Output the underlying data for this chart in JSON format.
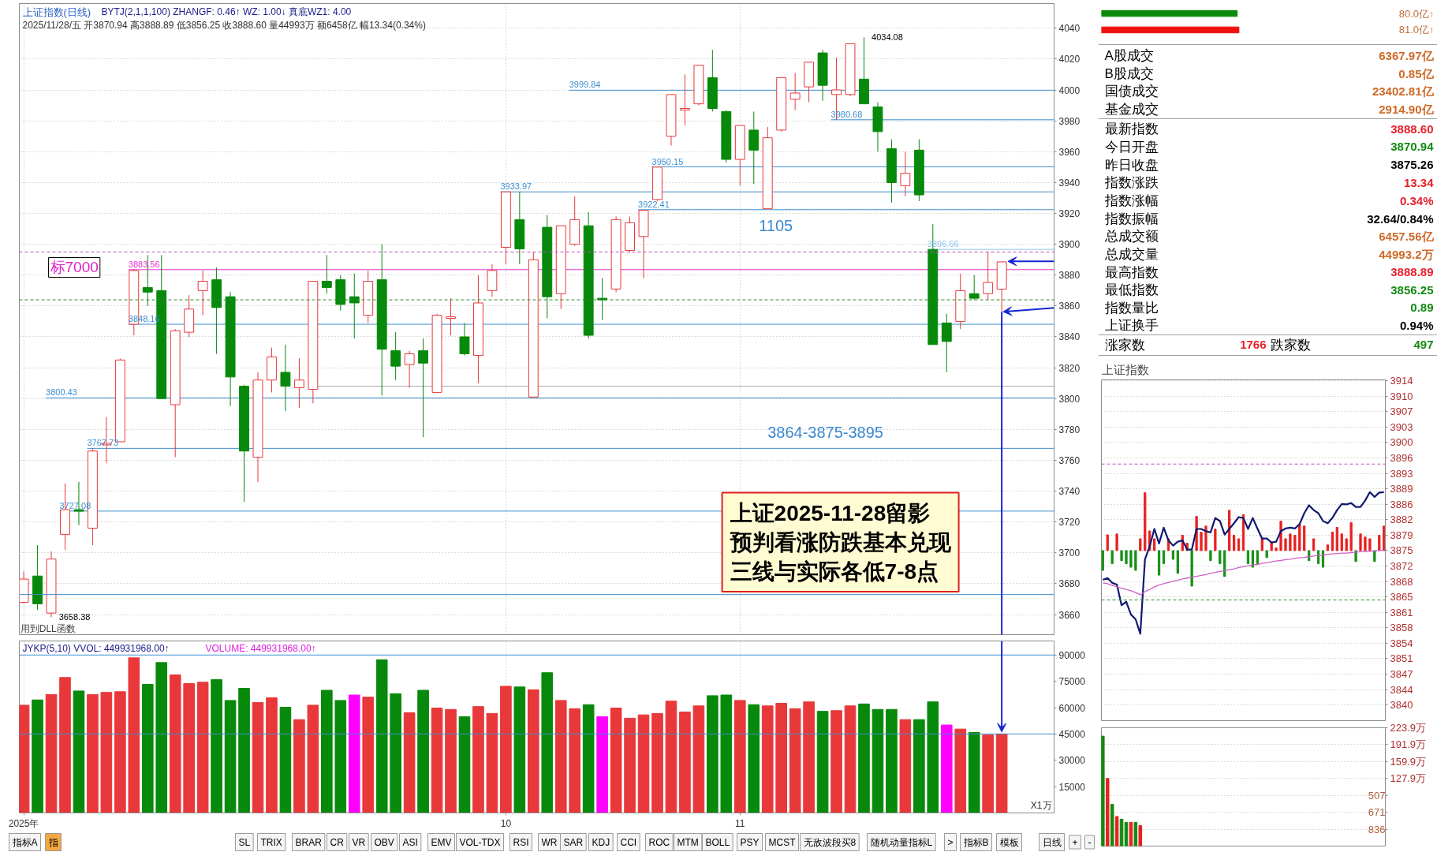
{
  "chart_data": [
    {
      "type": "candlestick",
      "title": "上证指数(日线)",
      "subtitle": "2025/11/28/五 开3870.94 高3888.89 低3856.25 收3888.60 量44993万 额6458亿 幅13.34(0.34%)",
      "categories": [
        null,
        null,
        null,
        null,
        null,
        null,
        null,
        null,
        null,
        null,
        null,
        null,
        null,
        null,
        null,
        null,
        null,
        null,
        null,
        null,
        null,
        null,
        null,
        null,
        null,
        null,
        null,
        null,
        null,
        null,
        null,
        null,
        null,
        null,
        null,
        null,
        null,
        null,
        null,
        null,
        null,
        null,
        null,
        null,
        null,
        null,
        null,
        null,
        null,
        null,
        null,
        null,
        null,
        null,
        null,
        null,
        null,
        null,
        null,
        null,
        null,
        null,
        null,
        null,
        null,
        null,
        null,
        null,
        null,
        null,
        null,
        null
      ],
      "ohlc": [
        [
          3668,
          3688,
          3667,
          3683
        ],
        [
          3685,
          3705,
          3663,
          3667
        ],
        [
          3661,
          3701,
          3658.38,
          3696
        ],
        [
          3712,
          3745,
          3702,
          3728
        ],
        [
          3728,
          3746,
          3718,
          3727
        ],
        [
          3716,
          3767.73,
          3705,
          3766
        ],
        [
          3770,
          3788,
          3758,
          3771
        ],
        [
          3772,
          3826,
          3772,
          3825
        ],
        [
          3848.16,
          3883.56,
          3841,
          3883
        ],
        [
          3872,
          3893,
          3860,
          3869
        ],
        [
          3870,
          3893,
          3800,
          3800
        ],
        [
          3796,
          3845,
          3762,
          3844
        ],
        [
          3843,
          3867,
          3840,
          3858
        ],
        [
          3870,
          3883,
          3854,
          3876
        ],
        [
          3877,
          3885,
          3829,
          3859
        ],
        [
          3866,
          3869,
          3795,
          3814
        ],
        [
          3808,
          3809,
          3733,
          3766
        ],
        [
          3762,
          3817,
          3746,
          3812
        ],
        [
          3812,
          3833,
          3804,
          3827
        ],
        [
          3817,
          3835,
          3792,
          3808
        ],
        [
          3807,
          3826,
          3794,
          3812
        ],
        [
          3806,
          3876,
          3797,
          3876
        ],
        [
          3876,
          3893,
          3868,
          3872
        ],
        [
          3877,
          3880,
          3857,
          3861
        ],
        [
          3866,
          3881,
          3839,
          3862
        ],
        [
          3854,
          3883,
          3849,
          3876
        ],
        [
          3877,
          3900,
          3802,
          3832
        ],
        [
          3831,
          3843,
          3812,
          3821
        ],
        [
          3822,
          3831,
          3807,
          3829
        ],
        [
          3831,
          3839,
          3775,
          3823
        ],
        [
          3804,
          3855,
          3804,
          3854
        ],
        [
          3852,
          3865,
          3841,
          3853
        ],
        [
          3840,
          3849,
          3828,
          3829
        ],
        [
          3828,
          3880,
          3810,
          3862
        ],
        [
          3870,
          3887,
          3866,
          3883
        ],
        [
          3898,
          3934,
          3887,
          3933.97
        ],
        [
          3916,
          3934,
          3887,
          3897
        ],
        [
          3801,
          3895,
          3801,
          3890
        ],
        [
          3911,
          3919,
          3852,
          3866
        ],
        [
          3868,
          3912,
          3858,
          3912
        ],
        [
          3900,
          3931,
          3899,
          3916
        ],
        [
          3912,
          3921,
          3839,
          3841
        ],
        [
          3865,
          3878,
          3851,
          3864
        ],
        [
          3871,
          3918,
          3869,
          3916
        ],
        [
          3896,
          3918,
          3895,
          3914
        ],
        [
          3905,
          3922.41,
          3878,
          3922
        ],
        [
          3929,
          3950.15,
          3928,
          3950
        ],
        [
          3970,
          3997,
          3964,
          3997
        ],
        [
          3987,
          4010,
          3977,
          3988
        ],
        [
          3991,
          4016,
          3990,
          4016
        ],
        [
          4008,
          4026,
          3986,
          3988
        ],
        [
          3986,
          3987,
          3953,
          3955
        ],
        [
          3955,
          3977,
          3938,
          3977
        ],
        [
          3974,
          3986,
          3939,
          3961
        ],
        [
          3923,
          3976,
          3923,
          3969
        ],
        [
          3974,
          4008,
          3973,
          4008
        ],
        [
          3994,
          4011,
          3987,
          3998
        ],
        [
          4002,
          4018,
          3992,
          4018
        ],
        [
          4024,
          4026,
          3993,
          4003
        ],
        [
          3997,
          4021,
          3980.68,
          4000
        ],
        [
          3997,
          4030,
          3996,
          4030
        ],
        [
          4007,
          4034.08,
          3991,
          3991
        ],
        [
          3989,
          3992,
          3960,
          3973
        ],
        [
          3962,
          3968,
          3927,
          3940
        ],
        [
          3938,
          3960,
          3931,
          3946
        ],
        [
          3961,
          3968,
          3928,
          3932
        ],
        [
          3896.66,
          3913,
          3835,
          3835
        ],
        [
          3849,
          3855,
          3817,
          3837
        ],
        [
          3850,
          3881,
          3845,
          3870
        ],
        [
          3868,
          3880,
          3864,
          3865
        ],
        [
          3868,
          3895,
          3864,
          3875.26
        ],
        [
          3870.94,
          3888.89,
          3856.25,
          3888.6
        ]
      ],
      "colors": [
        "#e8383a",
        "#07890b",
        "#e8383a",
        "#e8383a",
        "#07890b",
        "#e8383a",
        "#e8383a",
        "#e8383a",
        "#e8383a",
        "#07890b",
        "#07890b",
        "#e8383a",
        "#e8383a",
        "#e8383a",
        "#07890b",
        "#07890b",
        "#07890b",
        "#e8383a",
        "#e8383a",
        "#07890b",
        "#e8383a",
        "#e8383a",
        "#07890b",
        "#07890b",
        "#07890b",
        "#e8383a",
        "#07890b",
        "#07890b",
        "#e8383a",
        "#07890b",
        "#e8383a",
        "#e8383a",
        "#07890b",
        "#e8383a",
        "#e8383a",
        "#e8383a",
        "#07890b",
        "#e8383a",
        "#07890b",
        "#e8383a",
        "#e8383a",
        "#07890b",
        "#07890b",
        "#e8383a",
        "#e8383a",
        "#e8383a",
        "#e8383a",
        "#e8383a",
        "#e8383a",
        "#e8383a",
        "#07890b",
        "#07890b",
        "#e8383a",
        "#07890b",
        "#e8383a",
        "#e8383a",
        "#e8383a",
        "#e8383a",
        "#07890b",
        "#e8383a",
        "#e8383a",
        "#07890b",
        "#07890b",
        "#07890b",
        "#e8383a",
        "#07890b",
        "#07890b",
        "#07890b",
        "#e8383a",
        "#07890b",
        "#e8383a",
        "#e8383a"
      ],
      "ylim": [
        3647,
        4056
      ],
      "yticks": [
        3660,
        3680,
        3700,
        3720,
        3740,
        3760,
        3780,
        3800,
        3820,
        3840,
        3860,
        3880,
        3900,
        3920,
        3940,
        3960,
        3980,
        4000,
        4020,
        4040
      ],
      "grid": true,
      "ref_lines": [
        {
          "axis": "y",
          "value": 3999.84,
          "label": "3999.84",
          "color": "#3d8fd0"
        },
        {
          "axis": "y",
          "value": 3980.68,
          "label": "3980.68",
          "color": "#3d8fd0"
        },
        {
          "axis": "y",
          "value": 3950.15,
          "label": "3950.15",
          "color": "#3d8fd0"
        },
        {
          "axis": "y",
          "value": 3933.97,
          "label": "3933.97",
          "color": "#3d8fd0"
        },
        {
          "axis": "y",
          "value": 3922.41,
          "label": "3922.41",
          "color": "#3d8fd0"
        },
        {
          "axis": "y",
          "value": 3896.66,
          "label": "3896.66",
          "color": "#8cc4ec"
        },
        {
          "axis": "y",
          "value": 3895,
          "color": "#c050b8",
          "line_style": "dashed"
        },
        {
          "axis": "y",
          "value": 3883.56,
          "label": "3883.56",
          "color": "#e830d0"
        },
        {
          "axis": "y",
          "value": 3864,
          "color": "#2a8a2a",
          "line_style": "dashed"
        },
        {
          "axis": "y",
          "value": 3848.16,
          "label": "3848.16",
          "color": "#3d8fd0"
        },
        {
          "axis": "y",
          "value": 3808,
          "color": "#a8a8a8"
        },
        {
          "axis": "y",
          "value": 3800.43,
          "label": "3800.43",
          "color": "#3d8fd0"
        },
        {
          "axis": "y",
          "value": 3767.73,
          "label": "3767.73",
          "color": "#3d8fd0"
        },
        {
          "axis": "y",
          "value": 3727.08,
          "label": "3727.08",
          "color": "#3d8fd0"
        },
        {
          "axis": "y",
          "value": 3673,
          "color": "#3d8fd0"
        }
      ],
      "annotations": [
        "标7000",
        "4034.08",
        "3658.38",
        "1105",
        "3864-3875-3895",
        "上证2025-11-28留影预判看涨防跌基本兑现三线与实际各低7-8点",
        "BYTJ(2,1,1,100)  ZHANGF: 0.46↑  WZ: 1.00↓  真底WZ1: 4.00",
        "用到DLL函数"
      ]
    },
    {
      "type": "bar",
      "title": "JYKP(5,10)  VVOL: 449931968.00↑",
      "ylabel": "X1万",
      "annotations": [
        "VOLUME: 449931968.00↑"
      ],
      "categories": [
        "2025年",
        null,
        null,
        null,
        null,
        null,
        null,
        null,
        null,
        null,
        null,
        null,
        null,
        null,
        null,
        null,
        null,
        null,
        null,
        null,
        null,
        null,
        null,
        null,
        null,
        null,
        null,
        null,
        null,
        null,
        null,
        null,
        null,
        null,
        null,
        "10",
        null,
        null,
        null,
        null,
        null,
        null,
        null,
        null,
        null,
        null,
        null,
        null,
        null,
        null,
        null,
        null,
        "11",
        null,
        null,
        null,
        null,
        null,
        null,
        null,
        null,
        null,
        null,
        null,
        null,
        null,
        null,
        null,
        null,
        null,
        null,
        null
      ],
      "values": [
        61400,
        64400,
        67500,
        77200,
        69500,
        67500,
        68700,
        69100,
        88400,
        73300,
        85700,
        78700,
        73700,
        74500,
        76000,
        64100,
        71000,
        62900,
        65600,
        60200,
        53200,
        61400,
        69900,
        64100,
        67200,
        66000,
        87300,
        67900,
        57100,
        69900,
        59800,
        59000,
        54800,
        60600,
        56700,
        72200,
        71800,
        70200,
        79900,
        64100,
        59400,
        61700,
        54800,
        59800,
        54000,
        55900,
        56700,
        63700,
        57500,
        61000,
        66800,
        67200,
        64100,
        61700,
        61000,
        62500,
        59400,
        63300,
        57900,
        58300,
        61000,
        62100,
        59000,
        59000,
        53200,
        53200,
        63300,
        50100,
        47800,
        45900,
        44400,
        45000
      ],
      "colors": [
        "#e8383a",
        "#07890b",
        "#e8383a",
        "#e8383a",
        "#07890b",
        "#e8383a",
        "#e8383a",
        "#e8383a",
        "#e8383a",
        "#07890b",
        "#07890b",
        "#e8383a",
        "#e8383a",
        "#e8383a",
        "#07890b",
        "#07890b",
        "#07890b",
        "#e8383a",
        "#e8383a",
        "#07890b",
        "#e8383a",
        "#e8383a",
        "#07890b",
        "#07890b",
        "#ff00ff",
        "#e8383a",
        "#07890b",
        "#07890b",
        "#e8383a",
        "#07890b",
        "#e8383a",
        "#e8383a",
        "#07890b",
        "#e8383a",
        "#e8383a",
        "#e8383a",
        "#07890b",
        "#e8383a",
        "#07890b",
        "#e8383a",
        "#e8383a",
        "#07890b",
        "#ff00ff",
        "#e8383a",
        "#e8383a",
        "#e8383a",
        "#e8383a",
        "#e8383a",
        "#e8383a",
        "#e8383a",
        "#07890b",
        "#07890b",
        "#e8383a",
        "#07890b",
        "#e8383a",
        "#e8383a",
        "#e8383a",
        "#e8383a",
        "#07890b",
        "#e8383a",
        "#e8383a",
        "#07890b",
        "#07890b",
        "#07890b",
        "#e8383a",
        "#07890b",
        "#07890b",
        "#ff00ff",
        "#e8383a",
        "#07890b",
        "#e8383a",
        "#e8383a"
      ],
      "ylim": [
        0,
        98000
      ],
      "yticks": [
        15000,
        30000,
        45000,
        60000,
        75000,
        90000
      ],
      "grid": "x",
      "ref_lines": [
        {
          "axis": "y",
          "value": 90000,
          "color": "#3d8fd0"
        },
        {
          "axis": "y",
          "value": 45000,
          "color": "#3d8fd0"
        }
      ]
    },
    {
      "type": "other",
      "annotations": [
        "指标A",
        "指",
        "SL",
        "TRIX",
        "BRAR",
        "CR",
        "VR",
        "OBV",
        "ASI",
        "EMV",
        "VOL-TDX",
        "RSI",
        "WR",
        "SAR",
        "KDJ",
        "CCI",
        "ROC",
        "MTM",
        "BOLL",
        "PSY",
        "MCST",
        "无敌波段买8",
        "随机动量指标L",
        ">",
        "指标B",
        "模板",
        "日线",
        "+",
        "-"
      ]
    },
    {
      "type": "bar",
      "orientation": "horizontal",
      "categories": [
        null,
        null
      ],
      "values": [
        80.0,
        81.0
      ],
      "colors": [
        "#0a8a0a",
        "#f01010"
      ],
      "value_labels": [
        "80.0亿↑",
        "81.0亿↑"
      ]
    },
    {
      "type": "other",
      "annotations": [
        "A股成交",
        "6367.97亿",
        "B股成交",
        "0.85亿",
        "国债成交",
        "23402.81亿",
        "基金成交",
        "2914.90亿",
        "最新指数",
        "3888.60",
        "今日开盘",
        "3870.94",
        "昨日收盘",
        "3875.26",
        "指数涨跌",
        "13.34",
        "指数涨幅",
        "0.34%",
        "指数振幅",
        "32.64/0.84%",
        "总成交额",
        "6457.56亿",
        "总成交量",
        "44993.2万",
        "最高指数",
        "3888.89",
        "最低指数",
        "3856.25",
        "指数量比",
        "0.89",
        "上证换手",
        "0.94%",
        "涨家数",
        "1766",
        "跌家数",
        "497"
      ],
      "colors": [
        "#000000",
        "#d06a28",
        "#000000",
        "#d06a28",
        "#000000",
        "#d06a28",
        "#000000",
        "#d06a28",
        "#000000",
        "#e8202a",
        "#000000",
        "#128a12",
        "#000000",
        "#000000",
        "#000000",
        "#e8202a",
        "#000000",
        "#e8202a",
        "#000000",
        "#000000",
        "#000000",
        "#d06a28",
        "#000000",
        "#d06a28",
        "#000000",
        "#e8202a",
        "#000000",
        "#128a12",
        "#000000",
        "#128a12",
        "#000000",
        "#000000",
        "#000000",
        "#e8202a",
        "#000000",
        "#128a12"
      ]
    },
    {
      "type": "line",
      "title": "上证指数",
      "categories": [
        null,
        null,
        null,
        null,
        null,
        null,
        null,
        null,
        null,
        null,
        null,
        null,
        null,
        null,
        null,
        null,
        null,
        null,
        null,
        null,
        null,
        null,
        null,
        null,
        null,
        null,
        null,
        null,
        null,
        null,
        null,
        null,
        null,
        null,
        null,
        null,
        null,
        null,
        null,
        null,
        null,
        null,
        null,
        null,
        null,
        null,
        null,
        null,
        null,
        null,
        null,
        null,
        null,
        null,
        null,
        null,
        null,
        null,
        null,
        null,
        null
      ],
      "series": [
        {
          "type": "bar",
          "base": [
            3875.26,
            3875.26,
            3875.26,
            3875.26,
            3875.26,
            3875.26,
            3875.26,
            3875.26,
            3875.26,
            3875.26,
            3875.26,
            3875.26,
            3875.26,
            3875.26,
            3875.26,
            3875.26,
            3875.26,
            3875.26,
            3875.26,
            3875.26,
            3875.26,
            3875.26,
            3875.26,
            3875.26,
            3875.26,
            3875.26,
            3875.26,
            3875.26,
            3875.26,
            3875.26,
            3875.26,
            3875.26,
            3875.26,
            3875.26,
            3875.26,
            3875.26,
            3875.26,
            3875.26,
            3875.26,
            3875.26,
            3875.26,
            3875.26,
            3875.26,
            3875.26,
            3875.26,
            3875.26,
            3875.26,
            3875.26,
            3875.26,
            3875.26,
            3875.26,
            3875.26,
            3875.26,
            3875.26,
            3875.26,
            3875.26,
            3875.26,
            3875.26,
            3875.26,
            3875.26,
            3875.26
          ],
          "values": [
            -4.5,
            3.6,
            -3.0,
            3.8,
            -2.3,
            -3.0,
            -3.8,
            -4.5,
            2.7,
            13.2,
            4.5,
            2.7,
            -5.6,
            -3.0,
            2.7,
            -2.0,
            -5.2,
            3.5,
            1.7,
            -8.1,
            7.8,
            4.2,
            5.6,
            -2.3,
            4.9,
            -3.0,
            -5.9,
            9.2,
            3.5,
            2.7,
            8.2,
            -3.0,
            -3.8,
            -3.0,
            2.7,
            -1.6,
            2.0,
            0.6,
            6.7,
            2.7,
            3.8,
            3.5,
            6.0,
            5.6,
            -2.3,
            2.7,
            -3.0,
            -3.8,
            1.3,
            4.2,
            5.3,
            3.8,
            2.7,
            6.4,
            -2.5,
            3.8,
            3.1,
            2.7,
            -2.5,
            3.5,
            5.6
          ],
          "colors": [
            "#159015",
            "#e82020",
            "#159015",
            "#e82020",
            "#159015",
            "#159015",
            "#159015",
            "#159015",
            "#e82020",
            "#e82020",
            "#e82020",
            "#e82020",
            "#159015",
            "#159015",
            "#e82020",
            "#159015",
            "#159015",
            "#e82020",
            "#e82020",
            "#159015",
            "#e82020",
            "#e82020",
            "#e82020",
            "#159015",
            "#e82020",
            "#159015",
            "#159015",
            "#e82020",
            "#e82020",
            "#e82020",
            "#e82020",
            "#159015",
            "#159015",
            "#159015",
            "#e82020",
            "#159015",
            "#e82020",
            "#e82020",
            "#e82020",
            "#e82020",
            "#e82020",
            "#e82020",
            "#e82020",
            "#e82020",
            "#159015",
            "#e82020",
            "#159015",
            "#159015",
            "#e82020",
            "#e82020",
            "#e82020",
            "#e82020",
            "#e82020",
            "#e82020",
            "#159015",
            "#e82020",
            "#e82020",
            "#e82020",
            "#159015",
            "#e82020",
            "#e82020"
          ]
        },
        {
          "color": "#101a70",
          "values": [
            3868.6,
            3869.0,
            3867.9,
            3867.5,
            3862.8,
            3863.6,
            3860.7,
            3859.6,
            3856.3,
            3873.3,
            3876.2,
            3880.2,
            3876.9,
            3880.5,
            3877.6,
            3876.4,
            3877.3,
            3877.6,
            3875.5,
            3875.5,
            3880.2,
            3880.2,
            3879.7,
            3879.4,
            3882.7,
            3882.0,
            3878.9,
            3880.2,
            3881.5,
            3882.9,
            3882.7,
            3880.2,
            3882.7,
            3880.3,
            3878.0,
            3878.0,
            3877.1,
            3877.3,
            3879.7,
            3880.3,
            3880.5,
            3880.3,
            3881.3,
            3883.8,
            3885.6,
            3884.5,
            3883.8,
            3882.0,
            3881.5,
            3882.7,
            3884.5,
            3885.9,
            3885.8,
            3886.1,
            3885.2,
            3885.2,
            3886.7,
            3888.6,
            3887.5,
            3888.5,
            3888.6
          ]
        },
        {
          "color": "#d060c8",
          "values": [
            3867.9,
            3867.7,
            3867.3,
            3867.0,
            3866.7,
            3866.4,
            3866.1,
            3865.7,
            3865.2,
            3865.9,
            3866.4,
            3867.0,
            3867.4,
            3867.7,
            3868.0,
            3868.3,
            3868.5,
            3868.8,
            3869.0,
            3869.2,
            3869.4,
            3869.6,
            3869.8,
            3870.1,
            3870.3,
            3870.5,
            3870.7,
            3870.9,
            3871.1,
            3871.4,
            3871.6,
            3871.8,
            3872.0,
            3872.1,
            3872.4,
            3872.5,
            3872.7,
            3872.9,
            3873.0,
            3873.2,
            3873.3,
            3873.5,
            3873.6,
            3873.7,
            3873.9,
            3874.0,
            3874.2,
            3874.2,
            3874.4,
            3874.5,
            3874.6,
            3874.7,
            3874.7,
            3874.8,
            3874.9,
            3875.0,
            3875.0,
            3875.1,
            3875.2,
            3875.3,
            3875.3
          ]
        }
      ],
      "ylim": [
        3836.3,
        3914.2
      ],
      "yticks": [
        {
          "value": 3840.06,
          "label": "3840"
        },
        {
          "value": 3843.58,
          "label": "3844"
        },
        {
          "value": 3847.1,
          "label": "3847"
        },
        {
          "value": 3850.62,
          "label": "3851"
        },
        {
          "value": 3854.14,
          "label": "3854"
        },
        {
          "value": 3857.66,
          "label": "3858"
        },
        {
          "value": 3861.18,
          "label": "3861"
        },
        {
          "value": 3864.7,
          "label": "3865"
        },
        {
          "value": 3868.22,
          "label": "3868"
        },
        {
          "value": 3871.74,
          "label": "3872"
        },
        {
          "value": 3875.26,
          "label": "3875"
        },
        {
          "value": 3878.78,
          "label": "3879"
        },
        {
          "value": 3882.3,
          "label": "3882"
        },
        {
          "value": 3885.82,
          "label": "3886"
        },
        {
          "value": 3889.34,
          "label": "3889"
        },
        {
          "value": 3892.86,
          "label": "3893"
        },
        {
          "value": 3896.38,
          "label": "3896"
        },
        {
          "value": 3899.9,
          "label": "3900"
        },
        {
          "value": 3903.42,
          "label": "3903"
        },
        {
          "value": 3906.94,
          "label": "3907"
        },
        {
          "value": 3910.46,
          "label": "3910"
        },
        {
          "value": 3913.98,
          "label": "3914"
        }
      ],
      "ref_lines": [
        {
          "axis": "y",
          "value": 3895,
          "color": "#c050c0",
          "line_style": "dashed"
        },
        {
          "axis": "y",
          "value": 3864,
          "color": "#2a8a2a",
          "line_style": "dashed"
        }
      ],
      "grid": "y"
    },
    {
      "type": "bar",
      "categories": [
        null,
        null,
        null,
        null,
        null,
        null,
        null,
        null,
        null,
        null,
        null,
        null,
        null,
        null,
        null,
        null,
        null,
        null,
        null,
        null,
        null,
        null,
        null,
        null,
        null,
        null,
        null,
        null,
        null,
        null,
        null,
        null,
        null,
        null,
        null,
        null,
        null,
        null,
        null,
        null,
        null,
        null,
        null,
        null,
        null,
        null,
        null,
        null,
        null,
        null,
        null,
        null,
        null,
        null,
        null,
        null,
        null,
        null,
        null,
        null,
        null
      ],
      "values": [
        208,
        128,
        79,
        56,
        51,
        45,
        45,
        45,
        39,
        null,
        null,
        null,
        null,
        null,
        null,
        null,
        null,
        null,
        null,
        null,
        null,
        null,
        null,
        null,
        null,
        null,
        null,
        null,
        null,
        null,
        null,
        null,
        null,
        null,
        null,
        null,
        null,
        null,
        null,
        null,
        null,
        null,
        null,
        null,
        null,
        null,
        null,
        null,
        null,
        null,
        null,
        null,
        null,
        null,
        null,
        null,
        null,
        null,
        null,
        null,
        null
      ],
      "colors": [
        "#128a12",
        "#e82020",
        "#128a12",
        "#e82020",
        "#128a12",
        "#128a12",
        "#e82020",
        "#128a12",
        "#e82020",
        null,
        null,
        null,
        null,
        null,
        null,
        null,
        null,
        null,
        null,
        null,
        null,
        null,
        null,
        null,
        null,
        null,
        null,
        null,
        null,
        null,
        null,
        null,
        null,
        null,
        null,
        null,
        null,
        null,
        null,
        null,
        null,
        null,
        null,
        null,
        null,
        null,
        null,
        null,
        null,
        null,
        null,
        null,
        null,
        null,
        null,
        null,
        null,
        null,
        null,
        null,
        null
      ],
      "ylim": [
        0,
        223.9
      ],
      "yticks": [
        {
          "value": 31.9,
          "label": null
        },
        {
          "value": 63.9,
          "label": null
        },
        {
          "value": 95.9,
          "label": null
        },
        {
          "value": 127.9,
          "label": "127.9万"
        },
        {
          "value": 159.9,
          "label": "159.9万"
        },
        {
          "value": 191.9,
          "label": "191.9万"
        },
        {
          "value": 223.9,
          "label": "223.9万"
        }
      ],
      "annotations": [
        "507",
        "671",
        "836"
      ],
      "grid": "y"
    }
  ]
}
